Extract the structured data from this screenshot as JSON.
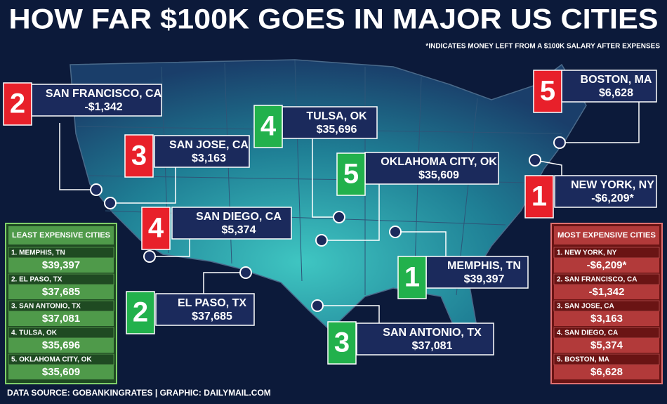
{
  "header": {
    "title": "HOW FAR $100K GOES IN MAJOR US CITIES",
    "note": "*INDICATES MONEY LEFT FROM A $100K SALARY AFTER EXPENSES"
  },
  "callouts": [
    {
      "rank": 2,
      "city": "SAN FRANCISCO, CA",
      "value": "-$1,342",
      "group": "most"
    },
    {
      "rank": 3,
      "city": "SAN JOSE, CA",
      "value": "$3,163",
      "group": "most"
    },
    {
      "rank": 4,
      "city": "TULSA, OK",
      "value": "$35,696",
      "group": "least"
    },
    {
      "rank": 5,
      "city": "OKLAHOMA CITY, OK",
      "value": "$35,609",
      "group": "least"
    },
    {
      "rank": 5,
      "city": "BOSTON, MA",
      "value": "$6,628",
      "group": "most"
    },
    {
      "rank": 1,
      "city": "NEW YORK, NY",
      "value": "-$6,209*",
      "group": "most"
    },
    {
      "rank": 4,
      "city": "SAN DIEGO, CA",
      "value": "$5,374",
      "group": "most"
    },
    {
      "rank": 1,
      "city": "MEMPHIS, TN",
      "value": "$39,397",
      "group": "least"
    },
    {
      "rank": 2,
      "city": "EL PASO, TX",
      "value": "$37,685",
      "group": "least"
    },
    {
      "rank": 3,
      "city": "SAN ANTONIO, TX",
      "value": "$37,081",
      "group": "least"
    }
  ],
  "least_expensive": {
    "title": "LEAST EXPENSIVE CITIES",
    "items": [
      {
        "city": "1. MEMPHIS, TN",
        "value": "$39,397"
      },
      {
        "city": "2. EL PASO, TX",
        "value": "$37,685"
      },
      {
        "city": "3. SAN ANTONIO, TX",
        "value": "$37,081"
      },
      {
        "city": "4. TULSA, OK",
        "value": "$35,696"
      },
      {
        "city": "5. OKLAHOMA CITY, OK",
        "value": "$35,609"
      }
    ]
  },
  "most_expensive": {
    "title": "MOST EXPENSIVE CITIES",
    "items": [
      {
        "city": "1. NEW YORK, NY",
        "value": "-$6,209*"
      },
      {
        "city": "2. SAN FRANCISCO, CA",
        "value": "-$1,342"
      },
      {
        "city": "3. SAN JOSE, CA",
        "value": "$3,163"
      },
      {
        "city": "4. SAN DIEGO, CA",
        "value": "$5,374"
      },
      {
        "city": "5. BOSTON, MA",
        "value": "$6,628"
      }
    ]
  },
  "footer": "DATA SOURCE: GOBANKINGRATES | GRAPHIC: DAILYMAIL.COM"
}
